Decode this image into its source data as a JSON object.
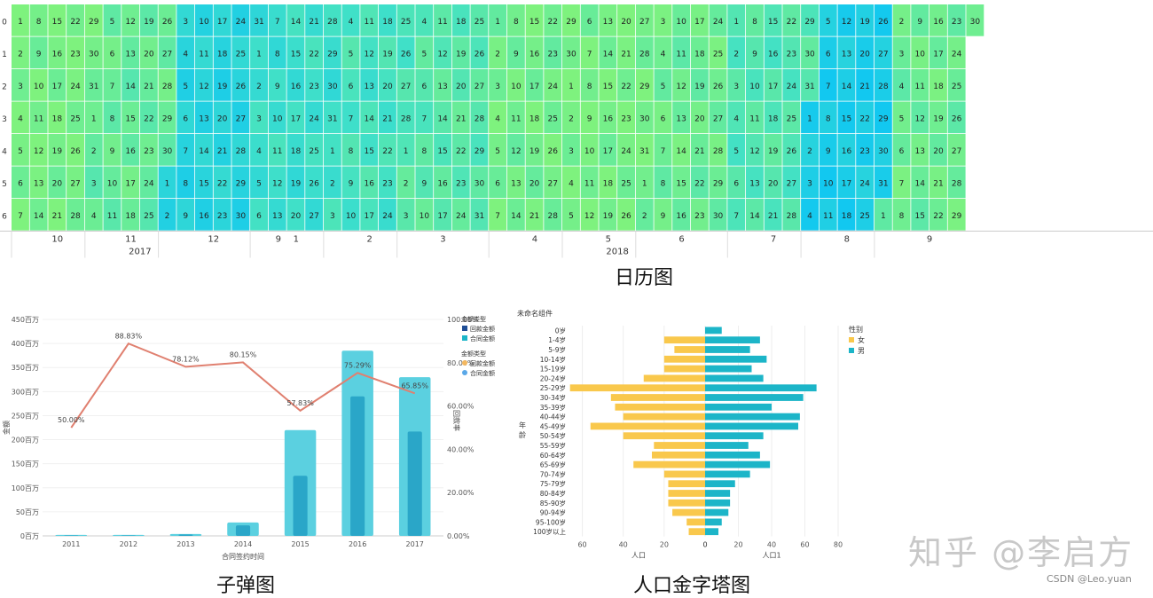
{
  "captions": {
    "calendar": "日历图",
    "bullet": "子弹图",
    "pyramid": "人口金字塔图"
  },
  "watermark": "知乎 @李启方",
  "csdn": "CSDN @Leo.yuan",
  "colors": {
    "low": "#7ef27e",
    "mid": "#40e0c8",
    "high": "#12c8f0",
    "line": "#e08070",
    "bar_outer": "#5bd0e0",
    "bar_inner": "#2aa6c8",
    "female": "#f9c84c",
    "male": "#1cb5c8"
  },
  "chart_data": [
    {
      "type": "heatmap",
      "title": "",
      "start_date": "2017-10-01",
      "end_date": "2018-09-30",
      "y_tick_labels": [
        "0",
        "1",
        "2",
        "3",
        "4",
        "5",
        "6"
      ],
      "month_labels": [
        "10",
        "11",
        "12",
        "9",
        "1",
        "2",
        "3",
        "4",
        "5",
        "6",
        "7",
        "8",
        "9"
      ],
      "year_labels": [
        "2017",
        "2018"
      ],
      "color_scale": [
        "#7ef27e",
        "#40e0c8",
        "#12c8f0"
      ],
      "monthly_intensity": {
        "2017-10": 0.05,
        "2017-11": 0.2,
        "2017-12": 0.75,
        "2018-01": 0.55,
        "2018-02": 0.45,
        "2018-03": 0.3,
        "2018-04": 0.1,
        "2018-05": 0.05,
        "2018-06": 0.15,
        "2018-07": 0.35,
        "2018-08": 0.9,
        "2018-09": 0.15
      }
    },
    {
      "type": "bar",
      "title": "",
      "categories": [
        "2011",
        "2012",
        "2013",
        "2014",
        "2015",
        "2016",
        "2017"
      ],
      "xlabel": "合同签约时间",
      "ylabel": "金额",
      "y2label": "回款率",
      "y_tick_labels": [
        "0百万",
        "50百万",
        "100百万",
        "150百万",
        "200百万",
        "250百万",
        "300百万",
        "350百万",
        "400百万",
        "450百万"
      ],
      "y2_tick_labels": [
        "0.00%",
        "20.00%",
        "40.00%",
        "60.00%",
        "80.00%",
        "100.00%"
      ],
      "ylim": [
        0,
        450
      ],
      "y2lim": [
        0,
        1
      ],
      "series": [
        {
          "name": "合同金额",
          "kind": "bar",
          "values": [
            2,
            2,
            4,
            28,
            220,
            385,
            330
          ]
        },
        {
          "name": "回款金额",
          "kind": "bar",
          "values": [
            1,
            1,
            3,
            22,
            125,
            290,
            217
          ]
        },
        {
          "name": "回款率",
          "kind": "line",
          "values": [
            0.5,
            0.8883,
            0.7812,
            0.8015,
            0.5783,
            0.7529,
            0.6585
          ],
          "labels": [
            "50.00%",
            "88.83%",
            "78.12%",
            "80.15%",
            "57.83%",
            "75.29%",
            "65.85%"
          ]
        }
      ],
      "legend": {
        "groups": [
          {
            "title": "金额类型",
            "items": [
              {
                "name": "回款金额",
                "color": "#1f4e96",
                "shape": "square"
              },
              {
                "name": "合同金额",
                "color": "#1cb5c8",
                "shape": "square"
              }
            ]
          },
          {
            "title": "金额类型",
            "items": [
              {
                "name": "回款金额",
                "color": "#f4b860",
                "shape": "dot"
              },
              {
                "name": "合同金额",
                "color": "#5aa8e8",
                "shape": "dot"
              }
            ]
          }
        ]
      }
    },
    {
      "type": "bar",
      "title": "未命名组件",
      "categories": [
        "0岁",
        "1-4岁",
        "5-9岁",
        "10-14岁",
        "15-19岁",
        "20-24岁",
        "25-29岁",
        "30-34岁",
        "35-39岁",
        "40-44岁",
        "45-49岁",
        "50-54岁",
        "55-59岁",
        "60-64岁",
        "65-69岁",
        "70-74岁",
        "75-79岁",
        "80-84岁",
        "85-90岁",
        "90-94岁",
        "95-100岁",
        "100岁以上"
      ],
      "ylabel": "年龄",
      "x_left_label": "人口",
      "x_right_label": "人口1",
      "x_left_ticks": [
        "60",
        "40",
        "20",
        "0"
      ],
      "x_right_ticks": [
        "0",
        "20",
        "40",
        "60",
        "80"
      ],
      "xlim_left": [
        0,
        65
      ],
      "xlim_right": [
        0,
        80
      ],
      "legend_title": "性别",
      "series": [
        {
          "name": "女",
          "values": [
            0,
            20,
            15,
            20,
            20,
            30,
            66,
            46,
            44,
            40,
            56,
            40,
            25,
            26,
            35,
            20,
            18,
            18,
            18,
            16,
            9,
            8
          ]
        },
        {
          "name": "男",
          "values": [
            10,
            33,
            27,
            37,
            28,
            35,
            67,
            59,
            40,
            57,
            56,
            35,
            26,
            33,
            39,
            27,
            18,
            15,
            15,
            14,
            10,
            8
          ]
        }
      ]
    }
  ]
}
